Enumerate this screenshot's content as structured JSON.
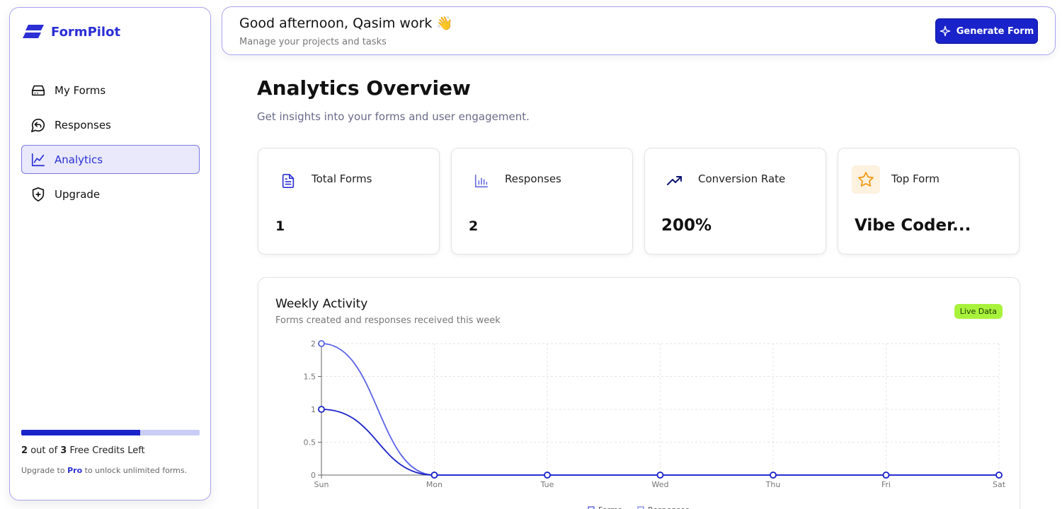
{
  "brand": {
    "name": "FormPilot"
  },
  "sidebar": {
    "items": [
      {
        "label": "My Forms",
        "icon": "hard-drive-icon",
        "active": false
      },
      {
        "label": "Responses",
        "icon": "message-reply-icon",
        "active": false
      },
      {
        "label": "Analytics",
        "icon": "line-chart-icon",
        "active": true
      },
      {
        "label": "Upgrade",
        "icon": "shield-plus-icon",
        "active": false
      }
    ],
    "credits": {
      "used": "2",
      "total": "3",
      "out_of": "out of",
      "suffix": "Free Credits Left",
      "progress_percent": 66.7
    },
    "upgrade": {
      "prefix": "Upgrade to",
      "link": "Pro",
      "suffix": "to unlock unlimited forms."
    }
  },
  "header": {
    "greeting": "Good afternoon, Qasim work",
    "greeting_emoji": "👋",
    "subtitle": "Manage your projects and tasks",
    "generate_button": "Generate Form"
  },
  "main": {
    "title": "Analytics Overview",
    "subtitle": "Get insights into your forms and user engagement.",
    "stats": [
      {
        "label": "Total Forms",
        "value": "1",
        "icon": "document-icon"
      },
      {
        "label": "Responses",
        "value": "2",
        "icon": "bar-chart-icon"
      },
      {
        "label": "Conversion Rate",
        "value": "200%",
        "icon": "trending-up-icon"
      },
      {
        "label": "Top Form",
        "value": "Vibe Coder...",
        "icon": "star-icon"
      }
    ],
    "weekly": {
      "title": "Weekly Activity",
      "subtitle": "Forms created and responses received this week",
      "badge": "Live Data"
    }
  },
  "colors": {
    "brand": "#2b2fd4",
    "primary_button": "#1a23c9",
    "live_badge": "#a9f23c",
    "series_forms": "#1a23c9",
    "series_responses": "#5b63e6"
  },
  "chart_data": {
    "type": "line",
    "x": [
      "Sun",
      "Mon",
      "Tue",
      "Wed",
      "Thu",
      "Fri",
      "Sat"
    ],
    "y_ticks": [
      "0",
      "0.5",
      "1",
      "1.5",
      "2"
    ],
    "ylim": [
      0,
      2
    ],
    "grid": true,
    "legend": "bottom",
    "series": [
      {
        "name": "Forms",
        "values": [
          1,
          0,
          0,
          0,
          0,
          0,
          0
        ],
        "color": "#1a23c9"
      },
      {
        "name": "Responses",
        "values": [
          2,
          0,
          0,
          0,
          0,
          0,
          0
        ],
        "color": "#5b63e6"
      }
    ]
  }
}
